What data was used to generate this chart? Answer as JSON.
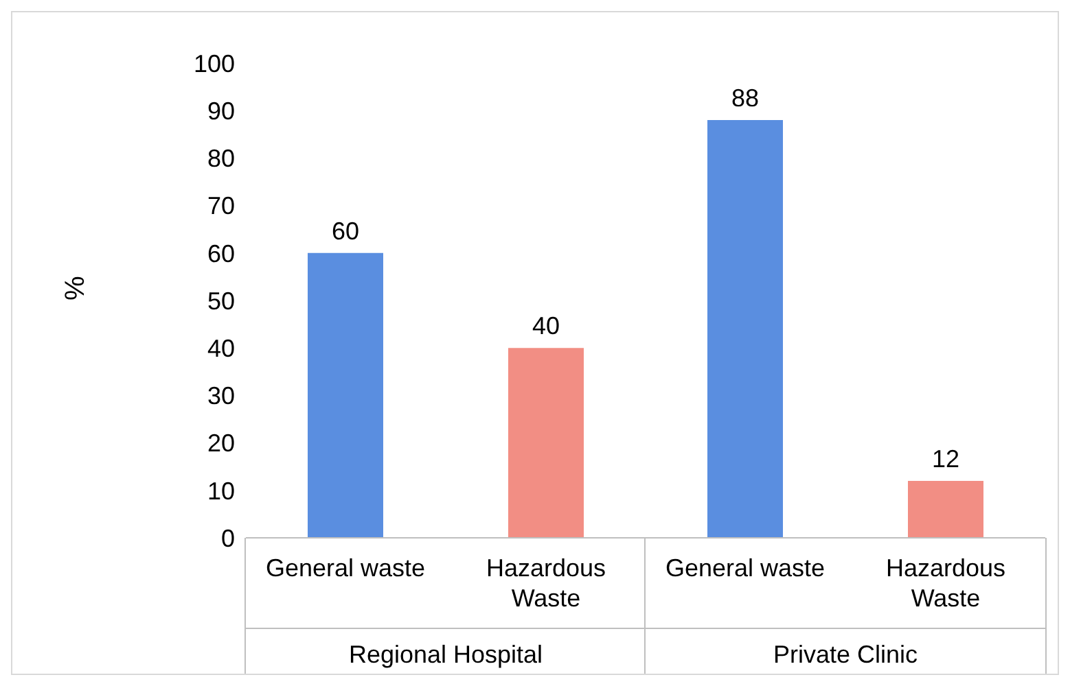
{
  "chart_data": {
    "type": "bar",
    "ylabel": "%",
    "categories": [
      "Regional Hospital",
      "Private Clinic"
    ],
    "series": [
      {
        "name": "General waste",
        "color": "#5a8ee0",
        "values": [
          60,
          88
        ]
      },
      {
        "name": "Hazardous Waste",
        "color": "#f28e84",
        "values": [
          40,
          12
        ]
      }
    ],
    "ylim": [
      0,
      100
    ],
    "yticks": [
      0,
      10,
      20,
      30,
      40,
      50,
      60,
      70,
      80,
      90,
      100
    ],
    "data_labels": true,
    "grid": false,
    "legend": false
  }
}
